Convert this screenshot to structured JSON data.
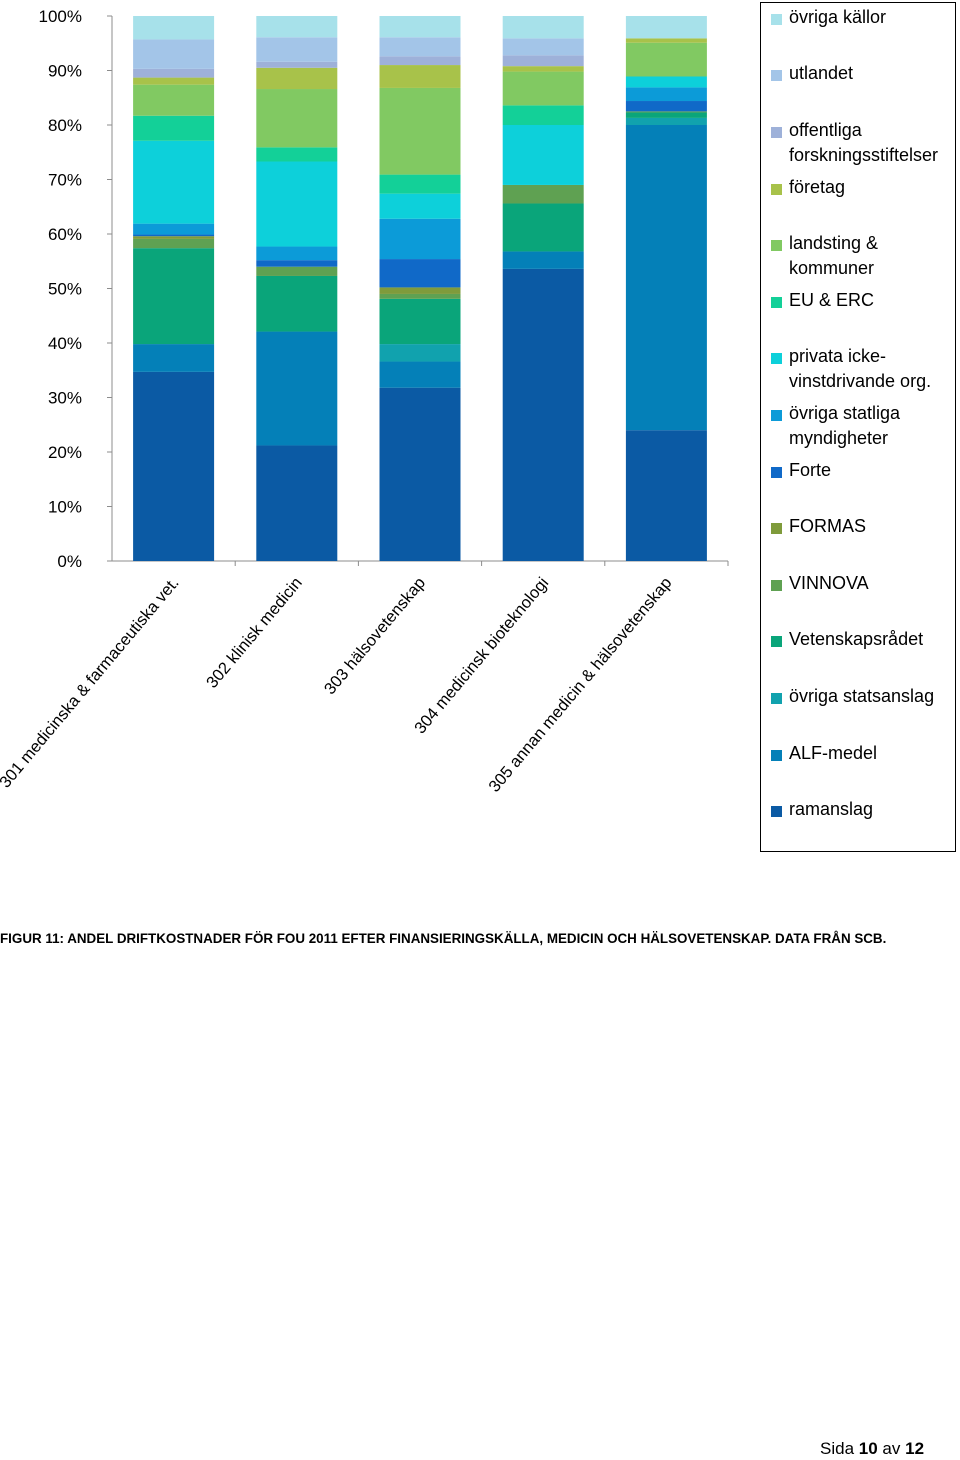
{
  "chart_data": {
    "type": "bar",
    "stacked": true,
    "percent": true,
    "title": "",
    "xlabel": "",
    "ylabel": "",
    "ylim": [
      0,
      100
    ],
    "y_ticks": [
      "0%",
      "10%",
      "20%",
      "30%",
      "40%",
      "50%",
      "60%",
      "70%",
      "80%",
      "90%",
      "100%"
    ],
    "grid": false,
    "legend_position": "right",
    "categories": [
      "301 medicinska & farmaceutiska vet.",
      "302 klinisk medicin",
      "303 hälsovetenskap",
      "304 medicinsk bioteknologi",
      "305 annan medicin & hälsovetenskap"
    ],
    "series": [
      {
        "name": "ramanslag",
        "color": "#0b5aa4",
        "values": [
          34.7,
          21.2,
          31.8,
          53.6,
          24.0
        ]
      },
      {
        "name": "ALF-medel",
        "color": "#0480b8",
        "values": [
          5.1,
          20.9,
          4.8,
          3.2,
          56.0
        ]
      },
      {
        "name": "övriga statsanslag",
        "color": "#11a2ae",
        "values": [
          0.0,
          0.0,
          3.2,
          0.0,
          1.3
        ]
      },
      {
        "name": "Vetenskapsrådet",
        "color": "#0aa57a",
        "values": [
          17.6,
          10.2,
          8.3,
          8.8,
          1.0
        ]
      },
      {
        "name": "VINNOVA",
        "color": "#5fa152",
        "values": [
          1.7,
          1.7,
          0.9,
          3.4,
          0.2
        ]
      },
      {
        "name": "FORMAS",
        "color": "#7f9b3b",
        "values": [
          0.5,
          0.0,
          1.2,
          0.0,
          0.0
        ]
      },
      {
        "name": "Forte",
        "color": "#1069c8",
        "values": [
          0.3,
          1.2,
          5.2,
          0.0,
          1.9
        ]
      },
      {
        "name": "övriga statliga myndigheter",
        "color": "#0c9bd8",
        "values": [
          2.0,
          2.5,
          7.4,
          0.0,
          2.5
        ]
      },
      {
        "name": "privata ickevinstdrivande org.",
        "color": "#0dd0da",
        "values": [
          15.2,
          15.6,
          4.6,
          11.0,
          2.0
        ]
      },
      {
        "name": "EU & ERC",
        "color": "#13d098",
        "values": [
          4.6,
          2.6,
          3.5,
          3.6,
          0.0
        ]
      },
      {
        "name": "landsting & kommuner",
        "color": "#81c962",
        "values": [
          5.7,
          10.7,
          15.9,
          6.2,
          6.2
        ]
      },
      {
        "name": "företag",
        "color": "#a8c24a",
        "values": [
          1.3,
          3.9,
          4.2,
          1.0,
          0.8
        ]
      },
      {
        "name": "offentliga forskningsstiftelser",
        "color": "#9eb1d9",
        "values": [
          1.6,
          1.1,
          1.6,
          2.0,
          0.0
        ]
      },
      {
        "name": "utlandet",
        "color": "#a3c5e8",
        "values": [
          5.4,
          4.5,
          3.5,
          3.1,
          0.0
        ]
      },
      {
        "name": "övriga källor",
        "color": "#a7e1ea",
        "values": [
          4.3,
          3.9,
          3.9,
          4.1,
          4.1
        ]
      }
    ]
  },
  "legend": {
    "items": [
      {
        "lines": [
          "övriga källor"
        ]
      },
      {
        "lines": [
          "utlandet"
        ]
      },
      {
        "lines": [
          "offentliga",
          "forskningsstiftelser"
        ]
      },
      {
        "lines": [
          "företag"
        ]
      },
      {
        "lines": [
          "landsting &",
          "kommuner"
        ]
      },
      {
        "lines": [
          "EU & ERC"
        ]
      },
      {
        "lines": [
          "privata icke-",
          "vinstdrivande org."
        ]
      },
      {
        "lines": [
          "övriga statliga",
          "myndigheter"
        ]
      },
      {
        "lines": [
          "Forte"
        ]
      },
      {
        "lines": [
          "FORMAS"
        ]
      },
      {
        "lines": [
          "VINNOVA"
        ]
      },
      {
        "lines": [
          "Vetenskapsrådet"
        ]
      },
      {
        "lines": [
          "övriga statsanslag"
        ]
      },
      {
        "lines": [
          "ALF-medel"
        ]
      },
      {
        "lines": [
          "ramanslag"
        ]
      }
    ]
  },
  "caption": "FIGUR 11: ANDEL DRIFTKOSTNADER FÖR FOU 2011 EFTER FINANSIERINGSKÄLLA, MEDICIN OCH HÄLSOVETENSKAP. DATA FRÅN SCB.",
  "footer": {
    "prefix": "Sida",
    "current": "10",
    "middle": "av",
    "total": "12"
  }
}
